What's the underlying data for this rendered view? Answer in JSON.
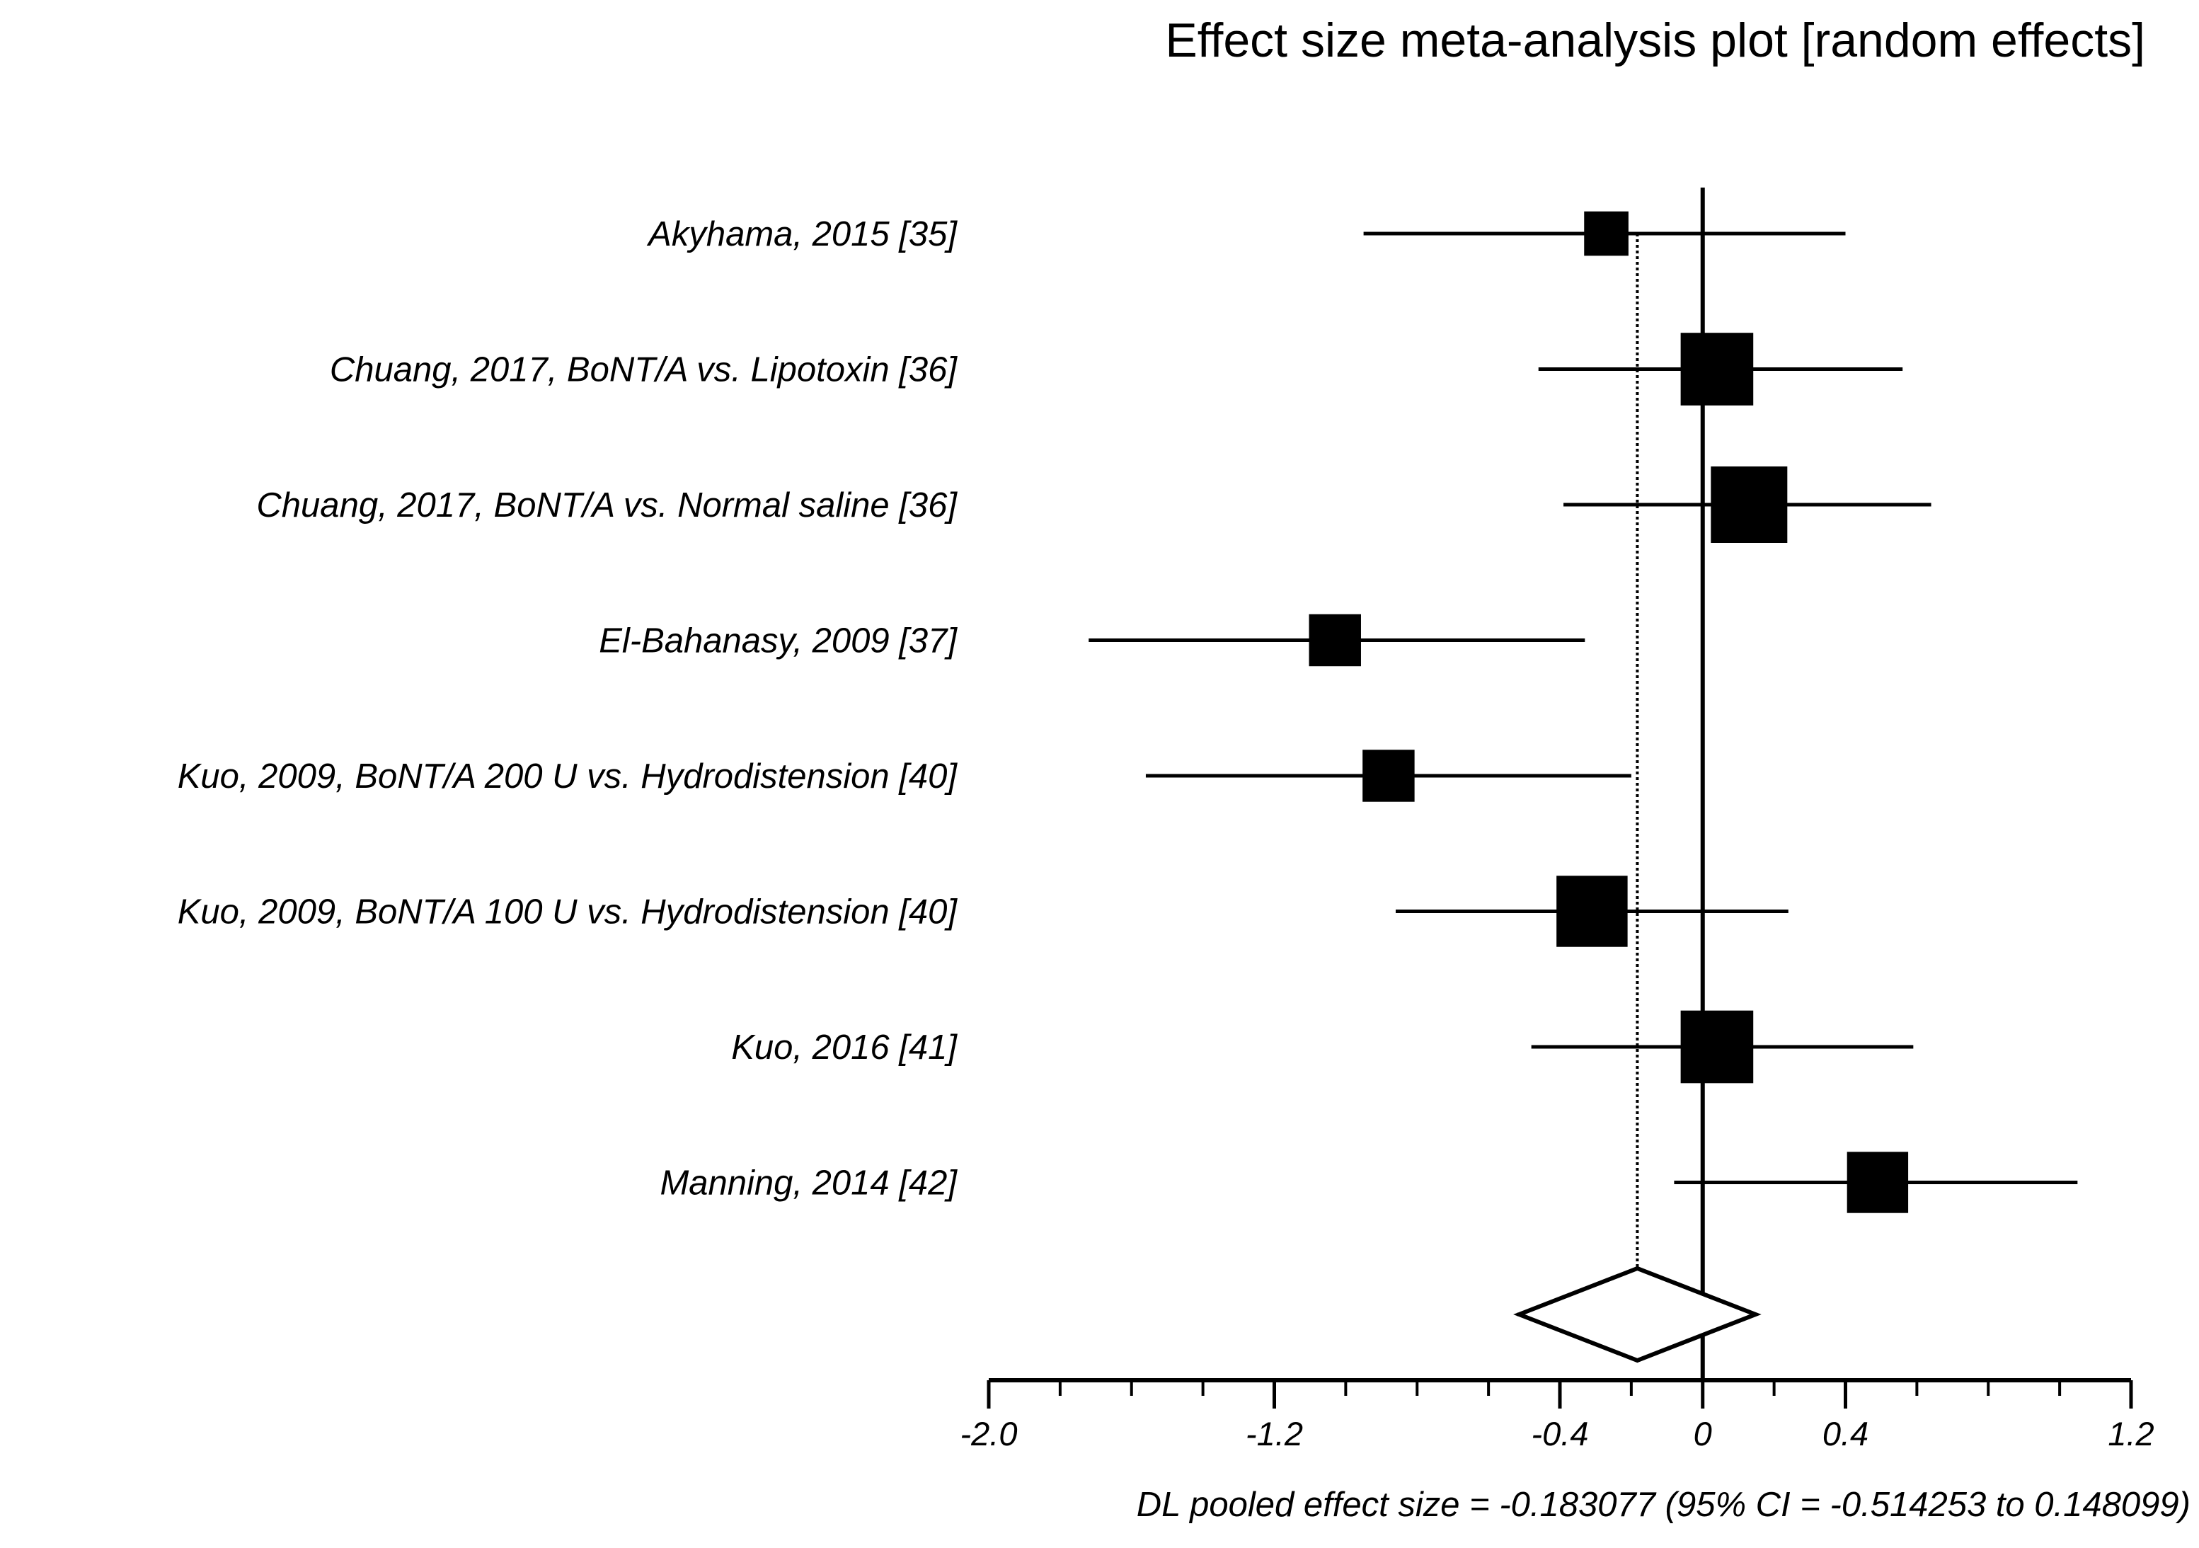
{
  "chart_data": {
    "type": "forest",
    "title": "Effect size meta-analysis plot [random effects]",
    "xlabel": "DL pooled effect size = -0.183077  (95% CI = -0.514253 to 0.148099)",
    "xlim": [
      -2.0,
      1.2
    ],
    "major_ticks": [
      -2.0,
      -1.2,
      -0.4,
      0,
      0.4,
      1.2
    ],
    "tick_labels": [
      "-2.0",
      "-1.2",
      "-0.4",
      "0",
      "0.4",
      "1.2"
    ],
    "minor_step": 0.2,
    "studies": [
      {
        "label": "Akyhama, 2015 [35]",
        "effect": -0.27,
        "lower": -0.95,
        "upper": 0.4,
        "weight": 0.58
      },
      {
        "label": "Chuang, 2017, BoNT/A vs. Lipotoxin [36]",
        "effect": 0.04,
        "lower": -0.46,
        "upper": 0.56,
        "weight": 0.95
      },
      {
        "label": "Chuang, 2017, BoNT/A vs. Normal saline [36]",
        "effect": 0.13,
        "lower": -0.39,
        "upper": 0.64,
        "weight": 1.0
      },
      {
        "label": "El-Bahanasy, 2009 [37]",
        "effect": -1.03,
        "lower": -1.72,
        "upper": -0.33,
        "weight": 0.68
      },
      {
        "label": "Kuo, 2009, BoNT/A 200 U vs. Hydrodistension [40]",
        "effect": -0.88,
        "lower": -1.56,
        "upper": -0.2,
        "weight": 0.68
      },
      {
        "label": "Kuo, 2009, BoNT/A 100 U vs. Hydrodistension [40]",
        "effect": -0.31,
        "lower": -0.86,
        "upper": 0.24,
        "weight": 0.93
      },
      {
        "label": "Kuo, 2016 [41]",
        "effect": 0.04,
        "lower": -0.48,
        "upper": 0.59,
        "weight": 0.95
      },
      {
        "label": "Manning, 2014 [42]",
        "effect": 0.49,
        "lower": -0.08,
        "upper": 1.05,
        "weight": 0.8
      }
    ],
    "pooled": {
      "effect": -0.183077,
      "lower": -0.514253,
      "upper": 0.148099
    },
    "overall_ci_line": [
      -0.52,
      0.15
    ],
    "reference_line": 0,
    "pooled_reference_line": -0.183077
  }
}
